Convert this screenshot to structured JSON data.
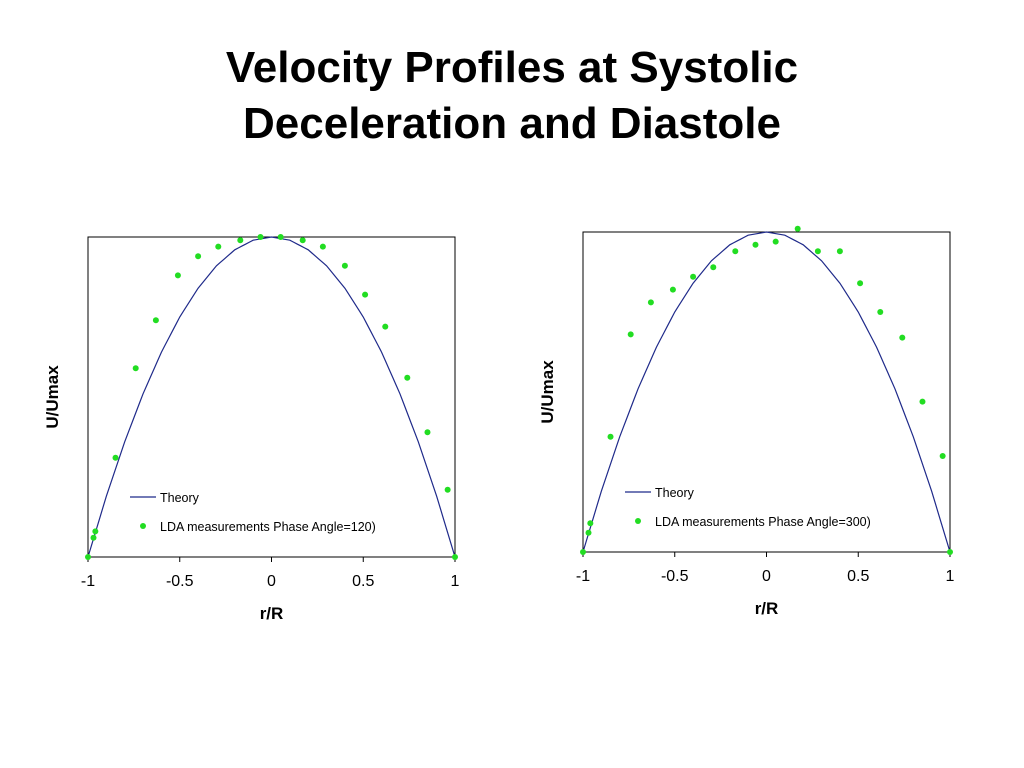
{
  "slide": {
    "title_line1": "Velocity Profiles at Systolic",
    "title_line2": "Deceleration and Diastole"
  },
  "colors": {
    "theory_line": "#1f2a8a",
    "lda_points": "#22dd22",
    "axes": "#000000"
  },
  "chart_data": [
    {
      "type": "scatter",
      "xlabel": "r/R",
      "ylabel": "U/Umax",
      "xlim": [
        -1,
        1
      ],
      "ylim": [
        0,
        1
      ],
      "xticks": [
        "-1",
        "-0.5",
        "0",
        "0.5",
        "1"
      ],
      "grid": false,
      "legend_position": "lower-center",
      "series": [
        {
          "name": "Theory",
          "kind": "line",
          "x": [
            -1,
            -0.9,
            -0.8,
            -0.7,
            -0.6,
            -0.5,
            -0.4,
            -0.3,
            -0.2,
            -0.1,
            0,
            0.1,
            0.2,
            0.3,
            0.4,
            0.5,
            0.6,
            0.7,
            0.8,
            0.9,
            1
          ],
          "y": [
            0,
            0.19,
            0.36,
            0.51,
            0.64,
            0.75,
            0.84,
            0.91,
            0.96,
            0.99,
            1,
            0.99,
            0.96,
            0.91,
            0.84,
            0.75,
            0.64,
            0.51,
            0.36,
            0.19,
            0
          ]
        },
        {
          "name": "LDA measurements Phase Angle=120)",
          "kind": "points",
          "x": [
            -1,
            -0.97,
            -0.96,
            -0.85,
            -0.74,
            -0.63,
            -0.51,
            -0.4,
            -0.29,
            -0.17,
            -0.06,
            0.05,
            0.17,
            0.28,
            0.4,
            0.51,
            0.62,
            0.74,
            0.85,
            0.96,
            1
          ],
          "y": [
            0,
            0.06,
            0.08,
            0.31,
            0.59,
            0.74,
            0.88,
            0.94,
            0.97,
            0.99,
            1.0,
            1.0,
            0.99,
            0.97,
            0.91,
            0.82,
            0.72,
            0.56,
            0.39,
            0.21,
            0
          ]
        }
      ]
    },
    {
      "type": "scatter",
      "xlabel": "r/R",
      "ylabel": "U/Umax",
      "xlim": [
        -1,
        1
      ],
      "ylim": [
        0,
        1
      ],
      "xticks": [
        "-1",
        "-0.5",
        "0",
        "0.5",
        "1"
      ],
      "grid": false,
      "legend_position": "lower-center",
      "series": [
        {
          "name": "Theory",
          "kind": "line",
          "x": [
            -1,
            -0.9,
            -0.8,
            -0.7,
            -0.6,
            -0.5,
            -0.4,
            -0.3,
            -0.2,
            -0.1,
            0,
            0.1,
            0.2,
            0.3,
            0.4,
            0.5,
            0.6,
            0.7,
            0.8,
            0.9,
            1
          ],
          "y": [
            0,
            0.19,
            0.36,
            0.51,
            0.64,
            0.75,
            0.84,
            0.91,
            0.96,
            0.99,
            1,
            0.99,
            0.96,
            0.91,
            0.84,
            0.75,
            0.64,
            0.51,
            0.36,
            0.19,
            0
          ]
        },
        {
          "name": "LDA measurements Phase Angle=300)",
          "kind": "points",
          "x": [
            -1,
            -0.97,
            -0.96,
            -0.85,
            -0.74,
            -0.63,
            -0.51,
            -0.4,
            -0.29,
            -0.17,
            -0.06,
            0.05,
            0.17,
            0.28,
            0.4,
            0.51,
            0.62,
            0.74,
            0.85,
            0.96,
            1
          ],
          "y": [
            0,
            0.06,
            0.09,
            0.36,
            0.68,
            0.78,
            0.82,
            0.86,
            0.89,
            0.94,
            0.96,
            0.97,
            1.01,
            0.94,
            0.94,
            0.84,
            0.75,
            0.67,
            0.47,
            0.3,
            0
          ]
        }
      ]
    }
  ]
}
